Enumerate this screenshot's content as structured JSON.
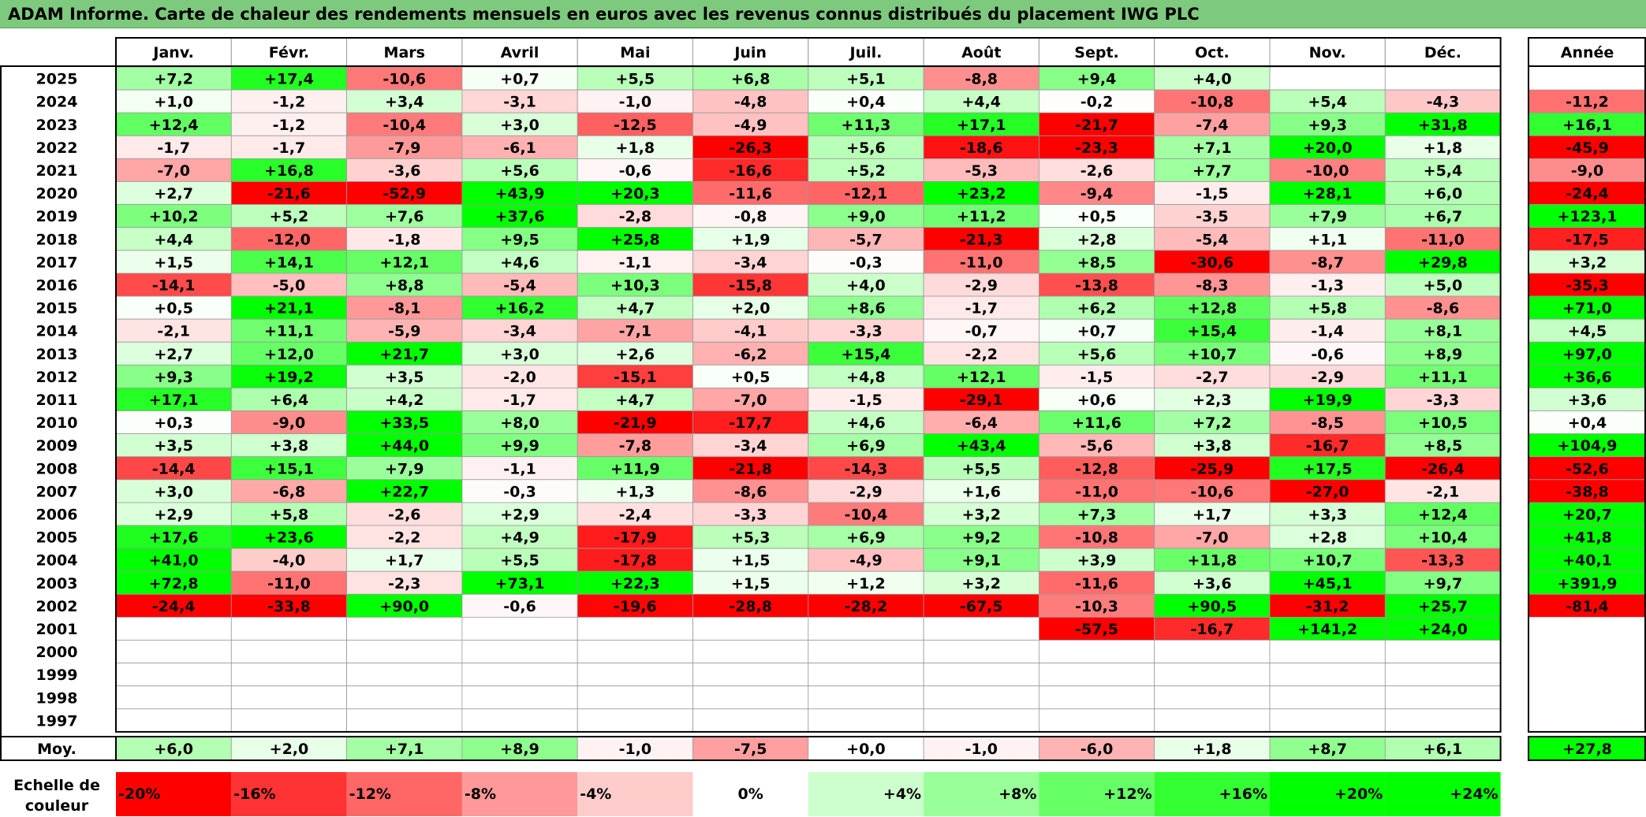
{
  "title": "ADAM Informe. Carte de chaleur des rendements mensuels en euros avec les revenus connus distribués du placement IWG PLC",
  "chart_data": {
    "type": "heatmap",
    "title": "ADAM Informe. Carte de chaleur des rendements mensuels en euros avec les revenus connus distribués du placement IWG PLC",
    "months": [
      "Janv.",
      "Févr.",
      "Mars",
      "Avril",
      "Mai",
      "Juin",
      "Juil.",
      "Août",
      "Sept.",
      "Oct.",
      "Nov.",
      "Déc."
    ],
    "annual_label": "Année",
    "average_label": "Moy.",
    "rows": [
      {
        "year": "2025",
        "values": [
          "+7,2",
          "+17,4",
          "-10,6",
          "+0,7",
          "+5,5",
          "+6,8",
          "+5,1",
          "-8,8",
          "+9,4",
          "+4,0",
          "",
          ""
        ],
        "annual": ""
      },
      {
        "year": "2024",
        "values": [
          "+1,0",
          "-1,2",
          "+3,4",
          "-3,1",
          "-1,0",
          "-4,8",
          "+0,4",
          "+4,4",
          "-0,2",
          "-10,8",
          "+5,4",
          "-4,3"
        ],
        "annual": "-11,2"
      },
      {
        "year": "2023",
        "values": [
          "+12,4",
          "-1,2",
          "-10,4",
          "+3,0",
          "-12,5",
          "-4,9",
          "+11,3",
          "+17,1",
          "-21,7",
          "-7,4",
          "+9,3",
          "+31,8"
        ],
        "annual": "+16,1"
      },
      {
        "year": "2022",
        "values": [
          "-1,7",
          "-1,7",
          "-7,9",
          "-6,1",
          "+1,8",
          "-26,3",
          "+5,6",
          "-18,6",
          "-23,3",
          "+7,1",
          "+20,0",
          "+1,8"
        ],
        "annual": "-45,9"
      },
      {
        "year": "2021",
        "values": [
          "-7,0",
          "+16,8",
          "-3,6",
          "+5,6",
          "-0,6",
          "-16,6",
          "+5,2",
          "-5,3",
          "-2,6",
          "+7,7",
          "-10,0",
          "+5,4"
        ],
        "annual": "-9,0"
      },
      {
        "year": "2020",
        "values": [
          "+2,7",
          "-21,6",
          "-52,9",
          "+43,9",
          "+20,3",
          "-11,6",
          "-12,1",
          "+23,2",
          "-9,4",
          "-1,5",
          "+28,1",
          "+6,0"
        ],
        "annual": "-24,4"
      },
      {
        "year": "2019",
        "values": [
          "+10,2",
          "+5,2",
          "+7,6",
          "+37,6",
          "-2,8",
          "-0,8",
          "+9,0",
          "+11,2",
          "+0,5",
          "-3,5",
          "+7,9",
          "+6,7"
        ],
        "annual": "+123,1"
      },
      {
        "year": "2018",
        "values": [
          "+4,4",
          "-12,0",
          "-1,8",
          "+9,5",
          "+25,8",
          "+1,9",
          "-5,7",
          "-21,3",
          "+2,8",
          "-5,4",
          "+1,1",
          "-11,0"
        ],
        "annual": "-17,5"
      },
      {
        "year": "2017",
        "values": [
          "+1,5",
          "+14,1",
          "+12,1",
          "+4,6",
          "-1,1",
          "-3,4",
          "-0,3",
          "-11,0",
          "+8,5",
          "-30,6",
          "-8,7",
          "+29,8"
        ],
        "annual": "+3,2"
      },
      {
        "year": "2016",
        "values": [
          "-14,1",
          "-5,0",
          "+8,8",
          "-5,4",
          "+10,3",
          "-15,8",
          "+4,0",
          "-2,9",
          "-13,8",
          "-8,3",
          "-1,3",
          "+5,0"
        ],
        "annual": "-35,3"
      },
      {
        "year": "2015",
        "values": [
          "+0,5",
          "+21,1",
          "-8,1",
          "+16,2",
          "+4,7",
          "+2,0",
          "+8,6",
          "-1,7",
          "+6,2",
          "+12,8",
          "+5,8",
          "-8,6"
        ],
        "annual": "+71,0"
      },
      {
        "year": "2014",
        "values": [
          "-2,1",
          "+11,1",
          "-5,9",
          "-3,4",
          "-7,1",
          "-4,1",
          "-3,3",
          "-0,7",
          "+0,7",
          "+15,4",
          "-1,4",
          "+8,1"
        ],
        "annual": "+4,5"
      },
      {
        "year": "2013",
        "values": [
          "+2,7",
          "+12,0",
          "+21,7",
          "+3,0",
          "+2,6",
          "-6,2",
          "+15,4",
          "-2,2",
          "+5,6",
          "+10,7",
          "-0,6",
          "+8,9"
        ],
        "annual": "+97,0"
      },
      {
        "year": "2012",
        "values": [
          "+9,3",
          "+19,2",
          "+3,5",
          "-2,0",
          "-15,1",
          "+0,5",
          "+4,8",
          "+12,1",
          "-1,5",
          "-2,7",
          "-2,9",
          "+11,1"
        ],
        "annual": "+36,6"
      },
      {
        "year": "2011",
        "values": [
          "+17,1",
          "+6,4",
          "+4,2",
          "-1,7",
          "+4,7",
          "-7,0",
          "-1,5",
          "-29,1",
          "+0,6",
          "+2,3",
          "+19,9",
          "-3,3"
        ],
        "annual": "+3,6"
      },
      {
        "year": "2010",
        "values": [
          "+0,3",
          "-9,0",
          "+33,5",
          "+8,0",
          "-21,9",
          "-17,7",
          "+4,6",
          "-6,4",
          "+11,6",
          "+7,2",
          "-8,5",
          "+10,5"
        ],
        "annual": "+0,4"
      },
      {
        "year": "2009",
        "values": [
          "+3,5",
          "+3,8",
          "+44,0",
          "+9,9",
          "-7,8",
          "-3,4",
          "+6,9",
          "+43,4",
          "-5,6",
          "+3,8",
          "-16,7",
          "+8,5"
        ],
        "annual": "+104,9"
      },
      {
        "year": "2008",
        "values": [
          "-14,4",
          "+15,1",
          "+7,9",
          "-1,1",
          "+11,9",
          "-21,8",
          "-14,3",
          "+5,5",
          "-12,8",
          "-25,9",
          "+17,5",
          "-26,4"
        ],
        "annual": "-52,6"
      },
      {
        "year": "2007",
        "values": [
          "+3,0",
          "-6,8",
          "+22,7",
          "-0,3",
          "+1,3",
          "-8,6",
          "-2,9",
          "+1,6",
          "-11,0",
          "-10,6",
          "-27,0",
          "-2,1"
        ],
        "annual": "-38,8"
      },
      {
        "year": "2006",
        "values": [
          "+2,9",
          "+5,8",
          "-2,6",
          "+2,9",
          "-2,4",
          "-3,3",
          "-10,4",
          "+3,2",
          "+7,3",
          "+1,7",
          "+3,3",
          "+12,4"
        ],
        "annual": "+20,7"
      },
      {
        "year": "2005",
        "values": [
          "+17,6",
          "+23,6",
          "-2,2",
          "+4,9",
          "-17,9",
          "+5,3",
          "+6,9",
          "+9,2",
          "-10,8",
          "-7,0",
          "+2,8",
          "+10,4"
        ],
        "annual": "+41,8"
      },
      {
        "year": "2004",
        "values": [
          "+41,0",
          "-4,0",
          "+1,7",
          "+5,5",
          "-17,8",
          "+1,5",
          "-4,9",
          "+9,1",
          "+3,9",
          "+11,8",
          "+10,7",
          "-13,3"
        ],
        "annual": "+40,1"
      },
      {
        "year": "2003",
        "values": [
          "+72,8",
          "-11,0",
          "-2,3",
          "+73,1",
          "+22,3",
          "+1,5",
          "+1,2",
          "+3,2",
          "-11,6",
          "+3,6",
          "+45,1",
          "+9,7"
        ],
        "annual": "+391,9"
      },
      {
        "year": "2002",
        "values": [
          "-24,4",
          "-33,8",
          "+90,0",
          "-0,6",
          "-19,6",
          "-28,8",
          "-28,2",
          "-67,5",
          "-10,3",
          "+90,5",
          "-31,2",
          "+25,7"
        ],
        "annual": "-81,4"
      },
      {
        "year": "2001",
        "values": [
          "",
          "",
          "",
          "",
          "",
          "",
          "",
          "",
          "-57,5",
          "-16,7",
          "+141,2",
          "+24,0"
        ],
        "annual": ""
      },
      {
        "year": "2000",
        "values": [
          "",
          "",
          "",
          "",
          "",
          "",
          "",
          "",
          "",
          "",
          "",
          ""
        ],
        "annual": ""
      },
      {
        "year": "1999",
        "values": [
          "",
          "",
          "",
          "",
          "",
          "",
          "",
          "",
          "",
          "",
          "",
          ""
        ],
        "annual": ""
      },
      {
        "year": "1998",
        "values": [
          "",
          "",
          "",
          "",
          "",
          "",
          "",
          "",
          "",
          "",
          "",
          ""
        ],
        "annual": ""
      },
      {
        "year": "1997",
        "values": [
          "",
          "",
          "",
          "",
          "",
          "",
          "",
          "",
          "",
          "",
          "",
          ""
        ],
        "annual": ""
      }
    ],
    "average": {
      "values": [
        "+6,0",
        "+2,0",
        "+7,1",
        "+8,9",
        "-1,0",
        "-7,5",
        "+0,0",
        "-1,0",
        "-6,0",
        "+1,8",
        "+8,7",
        "+6,1"
      ],
      "annual": "+27,8"
    },
    "scale_label": [
      "Echelle de",
      "couleur"
    ],
    "scale": [
      {
        "label": "-20%",
        "value": -20
      },
      {
        "label": "-16%",
        "value": -16
      },
      {
        "label": "-12%",
        "value": -12
      },
      {
        "label": "-8%",
        "value": -8
      },
      {
        "label": "-4%",
        "value": -4
      },
      {
        "label": "0%",
        "value": 0
      },
      {
        "label": "+4%",
        "value": 4
      },
      {
        "label": "+8%",
        "value": 8
      },
      {
        "label": "+12%",
        "value": 12
      },
      {
        "label": "+16%",
        "value": 16
      },
      {
        "label": "+20%",
        "value": 20
      },
      {
        "label": "+24%",
        "value": 24
      }
    ]
  }
}
